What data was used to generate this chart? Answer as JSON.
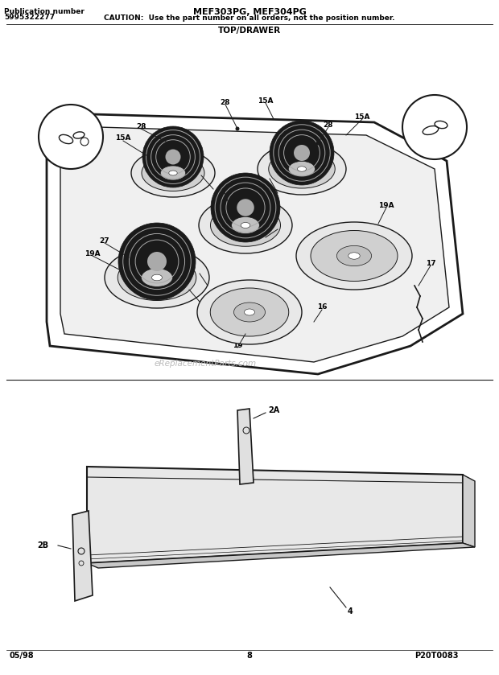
{
  "title_line1": "MEF303PG, MEF304PG",
  "caution_text": "CAUTION:  Use the part number on all orders, not the position number.",
  "section_title": "TOP/DRAWER",
  "pub_num_label": "Publication number",
  "pub_num": "5995322277",
  "footer_left": "05/98",
  "footer_center": "8",
  "footer_right": "P20T0083",
  "watermark": "eReplacementParts.com",
  "bg_color": "#ffffff",
  "lc": "#1a1a1a"
}
